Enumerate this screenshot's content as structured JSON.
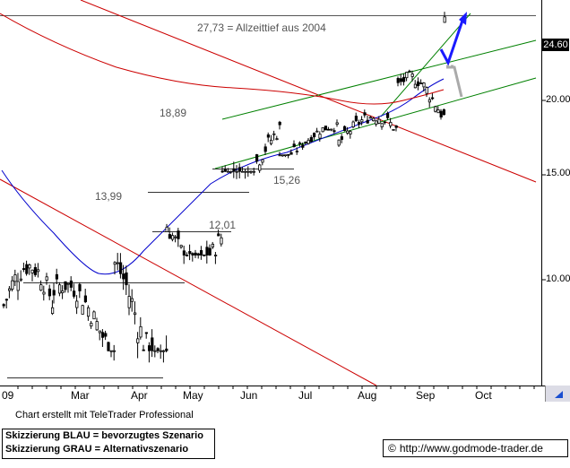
{
  "chart_data": {
    "type": "candlestick",
    "x_ticks": [
      "09",
      "Mar",
      "Apr",
      "May",
      "Jun",
      "Jul",
      "Aug",
      "Sep",
      "Oct"
    ],
    "y_ticks": [
      10.0,
      15.0,
      20.0
    ],
    "y_scale": "log",
    "ylim": [
      7.3,
      30.5
    ],
    "last_price": "24.60",
    "annotations": [
      "27,73 = Allzeittief aus 2004",
      "18,89",
      "13,99",
      "12,01",
      "15,26"
    ],
    "series": [
      {
        "name": "Kurs",
        "color": "#000000",
        "values_approx": [
          {
            "period": "Jan",
            "low": 8.0,
            "high": 11.0
          },
          {
            "period": "Feb",
            "low": 7.6,
            "high": 10.2
          },
          {
            "period": "Mar",
            "low": 7.6,
            "high": 11.4
          },
          {
            "period": "Apr",
            "low": 11.0,
            "high": 14.2
          },
          {
            "period": "May",
            "low": 15.2,
            "high": 18.9
          },
          {
            "period": "Jun",
            "low": 16.2,
            "high": 18.4
          },
          {
            "period": "Jul",
            "low": 16.4,
            "high": 19.2
          },
          {
            "period": "Aug",
            "low": 18.6,
            "high": 22.4
          },
          {
            "period": "Sep",
            "low": 22.1,
            "high": 27.7
          }
        ]
      },
      {
        "name": "Gleitender Durchschnitt (blau)",
        "color": "#0000cc"
      },
      {
        "name": "Gleitender Durchschnitt (rot)",
        "color": "#cc0000"
      }
    ],
    "grid": false,
    "colors": {
      "scenario_blue": "#1a1aff",
      "scenario_grey": "#aaaaaa",
      "channel": "#008000",
      "resistance": "#cc0000",
      "support_marks": "#333333"
    }
  },
  "axis": {
    "x_labels": [
      "09",
      "Mar",
      "Apr",
      "May",
      "Jun",
      "Jul",
      "Aug",
      "Sep",
      "Oct"
    ],
    "y_labels": [
      "20.00",
      "15.00",
      "10.00"
    ],
    "last_price_label": "24.60"
  },
  "annotations": {
    "alltime": "27,73 = Allzeittief aus 2004",
    "a1889": "18,89",
    "a1399": "13,99",
    "a1201": "12,01",
    "a1526": "15,26"
  },
  "footer": {
    "credit": "Chart erstellt mit TeleTrader Professional",
    "legend_blue": "Skizzierung BLAU = bevorzugtes Szenario",
    "legend_grey": "Skizzierung GRAU = Alternativszenario",
    "url": "http://www.godmode-trader.de",
    "url_icon": "copyright-icon"
  }
}
